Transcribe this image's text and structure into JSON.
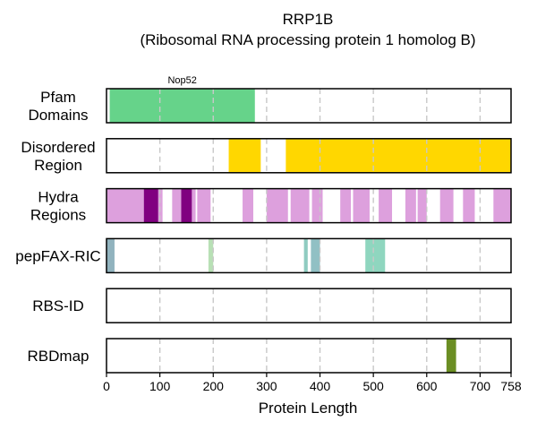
{
  "chart_data": {
    "type": "bar",
    "title": "RRP1B",
    "subtitle": "(Ribosomal RNA processing protein 1 homolog B)",
    "xlabel": "Protein Length",
    "xlim": [
      0,
      758
    ],
    "xticks": [
      0,
      100,
      200,
      300,
      400,
      500,
      600,
      700,
      758
    ],
    "grid": "vertical dashed",
    "tracks": [
      {
        "label": [
          "Pfam",
          "Domains"
        ],
        "segments": [
          {
            "start": 6,
            "end": 278,
            "color": "#66d38a",
            "label": "Nop52"
          }
        ]
      },
      {
        "label": [
          "Disordered",
          "Region"
        ],
        "segments": [
          {
            "start": 229,
            "end": 289,
            "color": "#ffd700"
          },
          {
            "start": 336,
            "end": 758,
            "color": "#ffd700"
          }
        ]
      },
      {
        "label": [
          "Hydra",
          "Regions"
        ],
        "segments": [
          {
            "start": 0,
            "end": 70,
            "color": "#dda0dd"
          },
          {
            "start": 70,
            "end": 97,
            "color": "#800080"
          },
          {
            "start": 97,
            "end": 105,
            "color": "#dda0dd"
          },
          {
            "start": 123,
            "end": 140,
            "color": "#dda0dd"
          },
          {
            "start": 140,
            "end": 160,
            "color": "#800080"
          },
          {
            "start": 160,
            "end": 167,
            "color": "#dda0dd"
          },
          {
            "start": 170,
            "end": 195,
            "color": "#dda0dd"
          },
          {
            "start": 255,
            "end": 275,
            "color": "#dda0dd"
          },
          {
            "start": 300,
            "end": 340,
            "color": "#dda0dd"
          },
          {
            "start": 345,
            "end": 380,
            "color": "#dda0dd"
          },
          {
            "start": 385,
            "end": 405,
            "color": "#dda0dd"
          },
          {
            "start": 438,
            "end": 458,
            "color": "#dda0dd"
          },
          {
            "start": 462,
            "end": 493,
            "color": "#dda0dd"
          },
          {
            "start": 510,
            "end": 535,
            "color": "#dda0dd"
          },
          {
            "start": 560,
            "end": 580,
            "color": "#dda0dd"
          },
          {
            "start": 583,
            "end": 600,
            "color": "#dda0dd"
          },
          {
            "start": 625,
            "end": 650,
            "color": "#dda0dd"
          },
          {
            "start": 668,
            "end": 690,
            "color": "#dda0dd"
          },
          {
            "start": 725,
            "end": 758,
            "color": "#dda0dd"
          }
        ]
      },
      {
        "label": [
          "pepFAX-RIC"
        ],
        "segments": [
          {
            "start": 0,
            "end": 15,
            "color": "#91b3be"
          },
          {
            "start": 191,
            "end": 200,
            "color": "#b8e0b5"
          },
          {
            "start": 370,
            "end": 377,
            "color": "#8fcbc0"
          },
          {
            "start": 383,
            "end": 400,
            "color": "#91c0c4"
          },
          {
            "start": 485,
            "end": 522,
            "color": "#8fd6bf"
          }
        ]
      },
      {
        "label": [
          "RBS-ID"
        ],
        "segments": []
      },
      {
        "label": [
          "RBDmap"
        ],
        "segments": [
          {
            "start": 637,
            "end": 655,
            "color": "#6b8e23"
          }
        ]
      }
    ]
  }
}
